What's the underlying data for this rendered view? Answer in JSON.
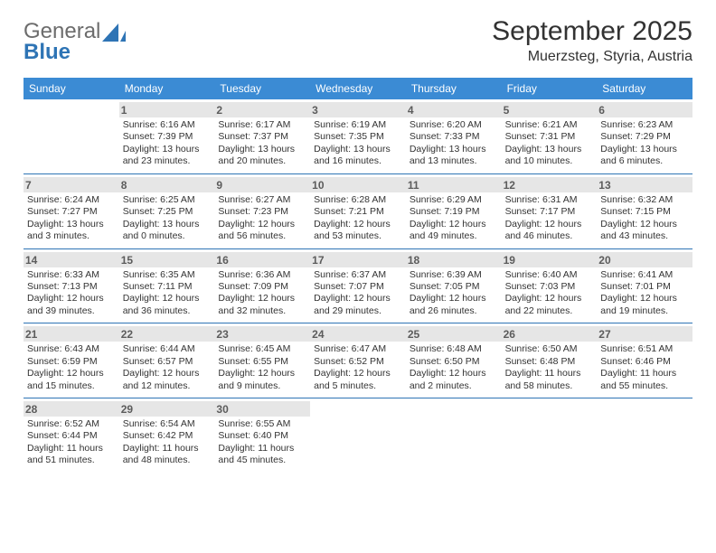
{
  "colors": {
    "brand_blue": "#2e74b5",
    "header_bar": "#3b8bd4",
    "daynum_bg": "#e6e6e6",
    "daynum_text": "#5c5c5c",
    "week_divider": "#2e74b5",
    "logo_gray": "#6c6c6c"
  },
  "logo": {
    "line1": "General",
    "line2": "Blue"
  },
  "title": "September 2025",
  "location": "Muerzsteg, Styria, Austria",
  "day_names": [
    "Sunday",
    "Monday",
    "Tuesday",
    "Wednesday",
    "Thursday",
    "Friday",
    "Saturday"
  ],
  "weeks": [
    [
      null,
      {
        "n": "1",
        "sunrise": "6:16 AM",
        "sunset": "7:39 PM",
        "day_h": "13",
        "day_m": "23"
      },
      {
        "n": "2",
        "sunrise": "6:17 AM",
        "sunset": "7:37 PM",
        "day_h": "13",
        "day_m": "20"
      },
      {
        "n": "3",
        "sunrise": "6:19 AM",
        "sunset": "7:35 PM",
        "day_h": "13",
        "day_m": "16"
      },
      {
        "n": "4",
        "sunrise": "6:20 AM",
        "sunset": "7:33 PM",
        "day_h": "13",
        "day_m": "13"
      },
      {
        "n": "5",
        "sunrise": "6:21 AM",
        "sunset": "7:31 PM",
        "day_h": "13",
        "day_m": "10"
      },
      {
        "n": "6",
        "sunrise": "6:23 AM",
        "sunset": "7:29 PM",
        "day_h": "13",
        "day_m": "6"
      }
    ],
    [
      {
        "n": "7",
        "sunrise": "6:24 AM",
        "sunset": "7:27 PM",
        "day_h": "13",
        "day_m": "3"
      },
      {
        "n": "8",
        "sunrise": "6:25 AM",
        "sunset": "7:25 PM",
        "day_h": "13",
        "day_m": "0"
      },
      {
        "n": "9",
        "sunrise": "6:27 AM",
        "sunset": "7:23 PM",
        "day_h": "12",
        "day_m": "56"
      },
      {
        "n": "10",
        "sunrise": "6:28 AM",
        "sunset": "7:21 PM",
        "day_h": "12",
        "day_m": "53"
      },
      {
        "n": "11",
        "sunrise": "6:29 AM",
        "sunset": "7:19 PM",
        "day_h": "12",
        "day_m": "49"
      },
      {
        "n": "12",
        "sunrise": "6:31 AM",
        "sunset": "7:17 PM",
        "day_h": "12",
        "day_m": "46"
      },
      {
        "n": "13",
        "sunrise": "6:32 AM",
        "sunset": "7:15 PM",
        "day_h": "12",
        "day_m": "43"
      }
    ],
    [
      {
        "n": "14",
        "sunrise": "6:33 AM",
        "sunset": "7:13 PM",
        "day_h": "12",
        "day_m": "39"
      },
      {
        "n": "15",
        "sunrise": "6:35 AM",
        "sunset": "7:11 PM",
        "day_h": "12",
        "day_m": "36"
      },
      {
        "n": "16",
        "sunrise": "6:36 AM",
        "sunset": "7:09 PM",
        "day_h": "12",
        "day_m": "32"
      },
      {
        "n": "17",
        "sunrise": "6:37 AM",
        "sunset": "7:07 PM",
        "day_h": "12",
        "day_m": "29"
      },
      {
        "n": "18",
        "sunrise": "6:39 AM",
        "sunset": "7:05 PM",
        "day_h": "12",
        "day_m": "26"
      },
      {
        "n": "19",
        "sunrise": "6:40 AM",
        "sunset": "7:03 PM",
        "day_h": "12",
        "day_m": "22"
      },
      {
        "n": "20",
        "sunrise": "6:41 AM",
        "sunset": "7:01 PM",
        "day_h": "12",
        "day_m": "19"
      }
    ],
    [
      {
        "n": "21",
        "sunrise": "6:43 AM",
        "sunset": "6:59 PM",
        "day_h": "12",
        "day_m": "15"
      },
      {
        "n": "22",
        "sunrise": "6:44 AM",
        "sunset": "6:57 PM",
        "day_h": "12",
        "day_m": "12"
      },
      {
        "n": "23",
        "sunrise": "6:45 AM",
        "sunset": "6:55 PM",
        "day_h": "12",
        "day_m": "9"
      },
      {
        "n": "24",
        "sunrise": "6:47 AM",
        "sunset": "6:52 PM",
        "day_h": "12",
        "day_m": "5"
      },
      {
        "n": "25",
        "sunrise": "6:48 AM",
        "sunset": "6:50 PM",
        "day_h": "12",
        "day_m": "2"
      },
      {
        "n": "26",
        "sunrise": "6:50 AM",
        "sunset": "6:48 PM",
        "day_h": "11",
        "day_m": "58"
      },
      {
        "n": "27",
        "sunrise": "6:51 AM",
        "sunset": "6:46 PM",
        "day_h": "11",
        "day_m": "55"
      }
    ],
    [
      {
        "n": "28",
        "sunrise": "6:52 AM",
        "sunset": "6:44 PM",
        "day_h": "11",
        "day_m": "51"
      },
      {
        "n": "29",
        "sunrise": "6:54 AM",
        "sunset": "6:42 PM",
        "day_h": "11",
        "day_m": "48"
      },
      {
        "n": "30",
        "sunrise": "6:55 AM",
        "sunset": "6:40 PM",
        "day_h": "11",
        "day_m": "45"
      },
      null,
      null,
      null,
      null
    ]
  ]
}
